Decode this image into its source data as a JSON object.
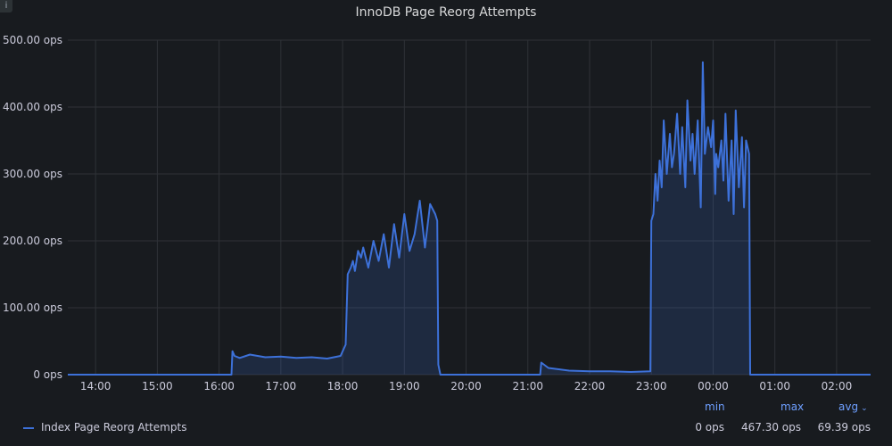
{
  "panel": {
    "title": "InnoDB Page Reorg Attempts"
  },
  "icons": {
    "info": "info-icon"
  },
  "colors": {
    "background": "#181b1f",
    "series": "#3d71d9",
    "fill": "rgba(61,113,217,0.18)",
    "grid": "#2f3237",
    "legend_header": "#6e9fff"
  },
  "legend": {
    "headers": {
      "min": "min",
      "max": "max",
      "avg": "avg"
    },
    "series": [
      {
        "name": "Index Page Reorg Attempts",
        "min": "0 ops",
        "max": "467.30 ops",
        "avg": "69.39 ops"
      }
    ]
  },
  "chart_data": {
    "type": "area",
    "title": "InnoDB Page Reorg Attempts",
    "x_unit": "hours (24h clock, wraps past midnight)",
    "xlim": [
      13.55,
      2.55
    ],
    "ylim": [
      0,
      500
    ],
    "y_ticks": [
      "0 ops",
      "100.00 ops",
      "200.00 ops",
      "300.00 ops",
      "400.00 ops",
      "500.00 ops"
    ],
    "x_ticks": [
      "14:00",
      "15:00",
      "16:00",
      "17:00",
      "18:00",
      "19:00",
      "20:00",
      "21:00",
      "22:00",
      "23:00",
      "00:00",
      "01:00",
      "02:00"
    ],
    "grid": true,
    "legend_position": "bottom",
    "series": [
      {
        "name": "Index Page Reorg Attempts",
        "x": [
          "13:33",
          "16:12",
          "16:13",
          "16:15",
          "16:20",
          "16:30",
          "16:45",
          "17:00",
          "17:15",
          "17:30",
          "17:45",
          "17:58",
          "18:03",
          "18:05",
          "18:08",
          "18:10",
          "18:12",
          "18:15",
          "18:18",
          "18:20",
          "18:25",
          "18:30",
          "18:35",
          "18:40",
          "18:45",
          "18:50",
          "18:55",
          "19:00",
          "19:05",
          "19:10",
          "19:15",
          "19:20",
          "19:25",
          "19:30",
          "19:32",
          "19:33",
          "19:35",
          "21:12",
          "21:13",
          "21:20",
          "21:40",
          "22:00",
          "22:20",
          "22:40",
          "22:59",
          "23:00",
          "23:02",
          "23:04",
          "23:06",
          "23:08",
          "23:10",
          "23:12",
          "23:15",
          "23:18",
          "23:20",
          "23:22",
          "23:25",
          "23:28",
          "23:30",
          "23:33",
          "23:35",
          "23:38",
          "23:40",
          "23:42",
          "23:45",
          "23:48",
          "23:50",
          "23:52",
          "23:55",
          "23:58",
          "00:00",
          "00:02",
          "00:03",
          "00:05",
          "00:08",
          "00:10",
          "00:12",
          "00:15",
          "00:18",
          "00:20",
          "00:22",
          "00:25",
          "00:28",
          "00:30",
          "00:32",
          "00:35",
          "00:36",
          "00:37",
          "02:33"
        ],
        "y": [
          0,
          0,
          35,
          28,
          25,
          30,
          26,
          27,
          25,
          26,
          24,
          28,
          45,
          150,
          160,
          170,
          155,
          185,
          175,
          190,
          160,
          200,
          170,
          210,
          160,
          225,
          175,
          240,
          185,
          210,
          260,
          190,
          255,
          240,
          230,
          15,
          0,
          0,
          18,
          10,
          6,
          5,
          5,
          4,
          5,
          230,
          240,
          300,
          260,
          320,
          280,
          380,
          300,
          360,
          310,
          330,
          390,
          300,
          370,
          280,
          410,
          320,
          360,
          300,
          380,
          250,
          467,
          330,
          370,
          340,
          380,
          270,
          330,
          310,
          350,
          290,
          390,
          260,
          350,
          240,
          395,
          280,
          355,
          250,
          350,
          330,
          0,
          0,
          0
        ]
      }
    ]
  }
}
